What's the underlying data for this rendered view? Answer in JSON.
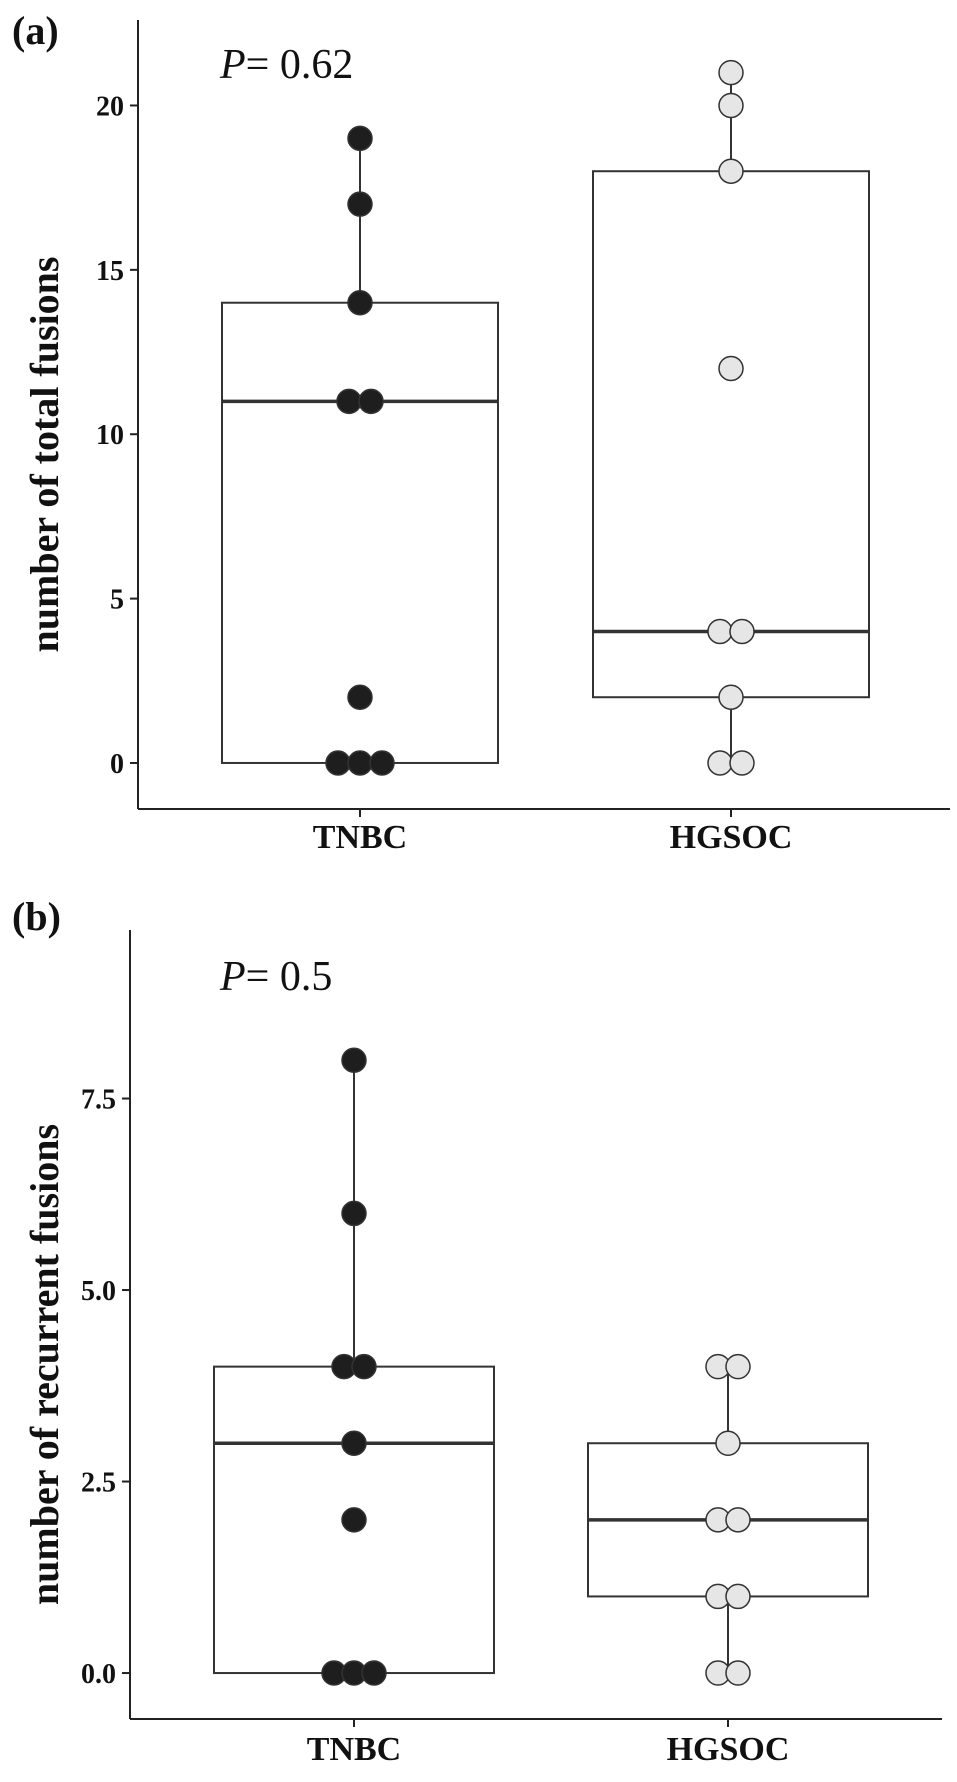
{
  "chart_data": [
    {
      "type": "box",
      "panel_label": "(a)",
      "annotation": {
        "p_symbol": "P",
        "p_text": "= 0.62"
      },
      "ylabel": "number of total fusions",
      "categories": [
        "TNBC",
        "HGSOC"
      ],
      "y_ticks": [
        0,
        5,
        10,
        15,
        20
      ],
      "y_tick_labels": [
        "0",
        "5",
        "10",
        "15",
        "20"
      ],
      "ylim": [
        -1.4,
        22.6
      ],
      "grid": false,
      "groups": [
        {
          "name": "TNBC",
          "color": "#1e1e1e",
          "box": {
            "q1": 0,
            "median": 11,
            "q3": 14,
            "whisker_low": 0,
            "whisker_high": 19
          },
          "points": [
            {
              "y": 19,
              "dx": 0
            },
            {
              "y": 17,
              "dx": 0
            },
            {
              "y": 14,
              "dx": 0
            },
            {
              "y": 11,
              "dx": -1
            },
            {
              "y": 11,
              "dx": 1
            },
            {
              "y": 2,
              "dx": 0
            },
            {
              "y": 0,
              "dx": -2
            },
            {
              "y": 0,
              "dx": 0
            },
            {
              "y": 0,
              "dx": 2
            }
          ]
        },
        {
          "name": "HGSOC",
          "color": "#e6e6e6",
          "box": {
            "q1": 2,
            "median": 4,
            "q3": 18,
            "whisker_low": 0,
            "whisker_high": 21
          },
          "points": [
            {
              "y": 21,
              "dx": 0
            },
            {
              "y": 20,
              "dx": 0
            },
            {
              "y": 18,
              "dx": 0
            },
            {
              "y": 12,
              "dx": 0
            },
            {
              "y": 4,
              "dx": -1
            },
            {
              "y": 4,
              "dx": 1
            },
            {
              "y": 2,
              "dx": 0
            },
            {
              "y": 0,
              "dx": -1
            },
            {
              "y": 0,
              "dx": 1
            }
          ]
        }
      ]
    },
    {
      "type": "box",
      "panel_label": "(b)",
      "annotation": {
        "p_symbol": "P",
        "p_text": "= 0.5"
      },
      "ylabel": "number of recurrent fusions",
      "categories": [
        "TNBC",
        "HGSOC"
      ],
      "y_ticks": [
        0,
        2.5,
        5,
        7.5
      ],
      "y_tick_labels": [
        "0.0",
        "2.5",
        "5.0",
        "7.5"
      ],
      "ylim": [
        -0.6,
        9.7
      ],
      "grid": false,
      "groups": [
        {
          "name": "TNBC",
          "color": "#1e1e1e",
          "box": {
            "q1": 0,
            "median": 3,
            "q3": 4,
            "whisker_low": 0,
            "whisker_high": 8
          },
          "points": [
            {
              "y": 8,
              "dx": 0
            },
            {
              "y": 6,
              "dx": 0
            },
            {
              "y": 4,
              "dx": -1
            },
            {
              "y": 4,
              "dx": 1
            },
            {
              "y": 3,
              "dx": 0
            },
            {
              "y": 2,
              "dx": 0
            },
            {
              "y": 0,
              "dx": -2
            },
            {
              "y": 0,
              "dx": 0
            },
            {
              "y": 0,
              "dx": 2
            }
          ]
        },
        {
          "name": "HGSOC",
          "color": "#e6e6e6",
          "box": {
            "q1": 1,
            "median": 2,
            "q3": 3,
            "whisker_low": 0,
            "whisker_high": 4
          },
          "points": [
            {
              "y": 4,
              "dx": -1
            },
            {
              "y": 4,
              "dx": 1
            },
            {
              "y": 3,
              "dx": 0
            },
            {
              "y": 2,
              "dx": -1
            },
            {
              "y": 2,
              "dx": 1
            },
            {
              "y": 1,
              "dx": -1
            },
            {
              "y": 1,
              "dx": 1
            },
            {
              "y": 0,
              "dx": -1
            },
            {
              "y": 0,
              "dx": 1
            }
          ]
        }
      ]
    }
  ]
}
